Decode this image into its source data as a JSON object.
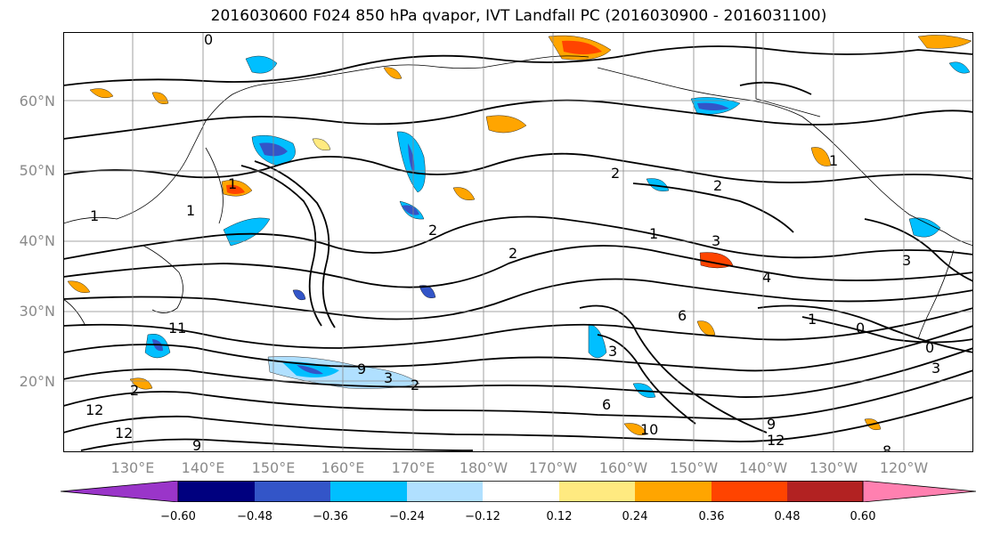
{
  "title": "2016030600 F024 850 hPa qvapor, IVT Landfall PC (2016030900 - 2016031100)",
  "lat_labels": [
    "60°N",
    "50°N",
    "40°N",
    "30°N",
    "20°N"
  ],
  "lon_labels": [
    "130°E",
    "140°E",
    "150°E",
    "160°E",
    "170°E",
    "180°W",
    "170°W",
    "160°W",
    "150°W",
    "140°W",
    "130°W",
    "120°W"
  ],
  "contour_labels": [
    "0",
    "1",
    "2",
    "2",
    "2",
    "1",
    "3",
    "4",
    "1",
    "0",
    "1",
    "0",
    "11",
    "12",
    "2",
    "3",
    "12",
    "2",
    "9",
    "10",
    "3",
    "6",
    "3",
    "12",
    "9",
    "8",
    "2",
    "3",
    "6",
    "1",
    "1",
    "9"
  ],
  "colorbar": {
    "ticks": [
      "−0.60",
      "−0.48",
      "−0.36",
      "−0.24",
      "−0.12",
      "0.12",
      "0.24",
      "0.36",
      "0.48",
      "0.60"
    ],
    "colors": [
      "#9a35c9",
      "#00007f",
      "#3355c8",
      "#00bfff",
      "#b0e0ff",
      "#ffffff",
      "#ffea80",
      "#ffa500",
      "#ff4400",
      "#b22222",
      "#ff80b0"
    ]
  },
  "colors": {
    "contour": "#000000",
    "grid": "#888888",
    "coast": "#000000"
  }
}
